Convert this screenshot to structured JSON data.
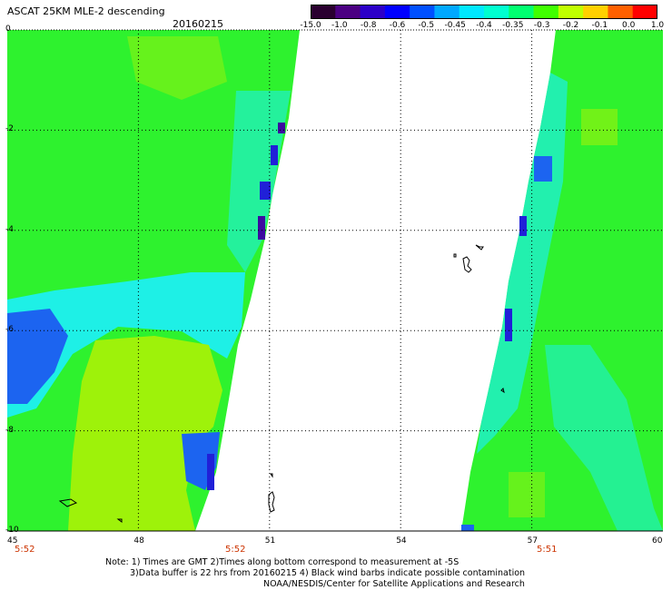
{
  "header": {
    "title": "ASCAT 25KM MLE-2 descending",
    "date": "20160215"
  },
  "colorbar": {
    "labels": [
      "-15.0",
      "-1.0",
      "-0.8",
      "-0.6",
      "-0.5",
      "-0.45",
      "-0.4",
      "-0.35",
      "-0.3",
      "-0.2",
      "-0.1",
      "0.0",
      "1.0"
    ],
    "colors": [
      "#2a0030",
      "#4b0082",
      "#2c00c8",
      "#0000ff",
      "#0050ff",
      "#00a8ff",
      "#00e8ff",
      "#00ffd0",
      "#00ff70",
      "#40ff00",
      "#c0ff00",
      "#ffd000",
      "#ff6000",
      "#ff0000"
    ]
  },
  "map": {
    "lat_labels": [
      "0",
      "-2",
      "-4",
      "-6",
      "-8",
      "-10"
    ],
    "lon_labels": [
      "45",
      "48",
      "51",
      "54",
      "57",
      "60"
    ],
    "time_labels": [
      "5:52",
      "5:52",
      "5:51"
    ],
    "colors": {
      "green": "#2ef22e",
      "lime": "#9ef20a",
      "cyan": "#1ef0e6",
      "blue": "#1c64f0",
      "darkblue": "#2020d8",
      "purple": "#3c0aa0"
    }
  },
  "notes": {
    "line1": "Note: 1) Times are GMT 2)Times along bottom correspond to measurement at -5S",
    "line2": "3)Data buffer is 22 hrs from 20160215 4) Black wind barbs indicate possible contamination",
    "line3": "NOAA/NESDIS/Center for Satellite Applications and Research"
  }
}
